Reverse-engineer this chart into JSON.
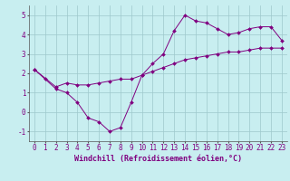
{
  "xlabel": "Windchill (Refroidissement éolien,°C)",
  "background_color": "#c8eef0",
  "line_color": "#800080",
  "xlim": [
    -0.5,
    23.5
  ],
  "ylim": [
    -1.5,
    5.5
  ],
  "xticks": [
    0,
    1,
    2,
    3,
    4,
    5,
    6,
    7,
    8,
    9,
    10,
    11,
    12,
    13,
    14,
    15,
    16,
    17,
    18,
    19,
    20,
    21,
    22,
    23
  ],
  "yticks": [
    -1,
    0,
    1,
    2,
    3,
    4,
    5
  ],
  "line1_x": [
    0,
    1,
    2,
    3,
    4,
    5,
    6,
    7,
    8,
    9,
    10,
    11,
    12,
    13,
    14,
    15,
    16,
    17,
    18,
    19,
    20,
    21,
    22,
    23
  ],
  "line1_y": [
    2.2,
    1.7,
    1.2,
    1.0,
    0.5,
    -0.3,
    -0.5,
    -1.0,
    -0.8,
    0.5,
    1.9,
    2.5,
    3.0,
    4.2,
    5.0,
    4.7,
    4.6,
    4.3,
    4.0,
    4.1,
    4.3,
    4.4,
    4.4,
    3.7
  ],
  "line2_x": [
    0,
    2,
    3,
    4,
    5,
    6,
    7,
    8,
    9,
    10,
    11,
    12,
    13,
    14,
    15,
    16,
    17,
    18,
    19,
    20,
    21,
    22,
    23
  ],
  "line2_y": [
    2.2,
    1.3,
    1.5,
    1.4,
    1.4,
    1.5,
    1.6,
    1.7,
    1.7,
    1.9,
    2.1,
    2.3,
    2.5,
    2.7,
    2.8,
    2.9,
    3.0,
    3.1,
    3.1,
    3.2,
    3.3,
    3.3,
    3.3
  ],
  "grid_color": "#9ec8cc",
  "xlabel_fontsize": 6,
  "tick_fontsize": 5.5
}
